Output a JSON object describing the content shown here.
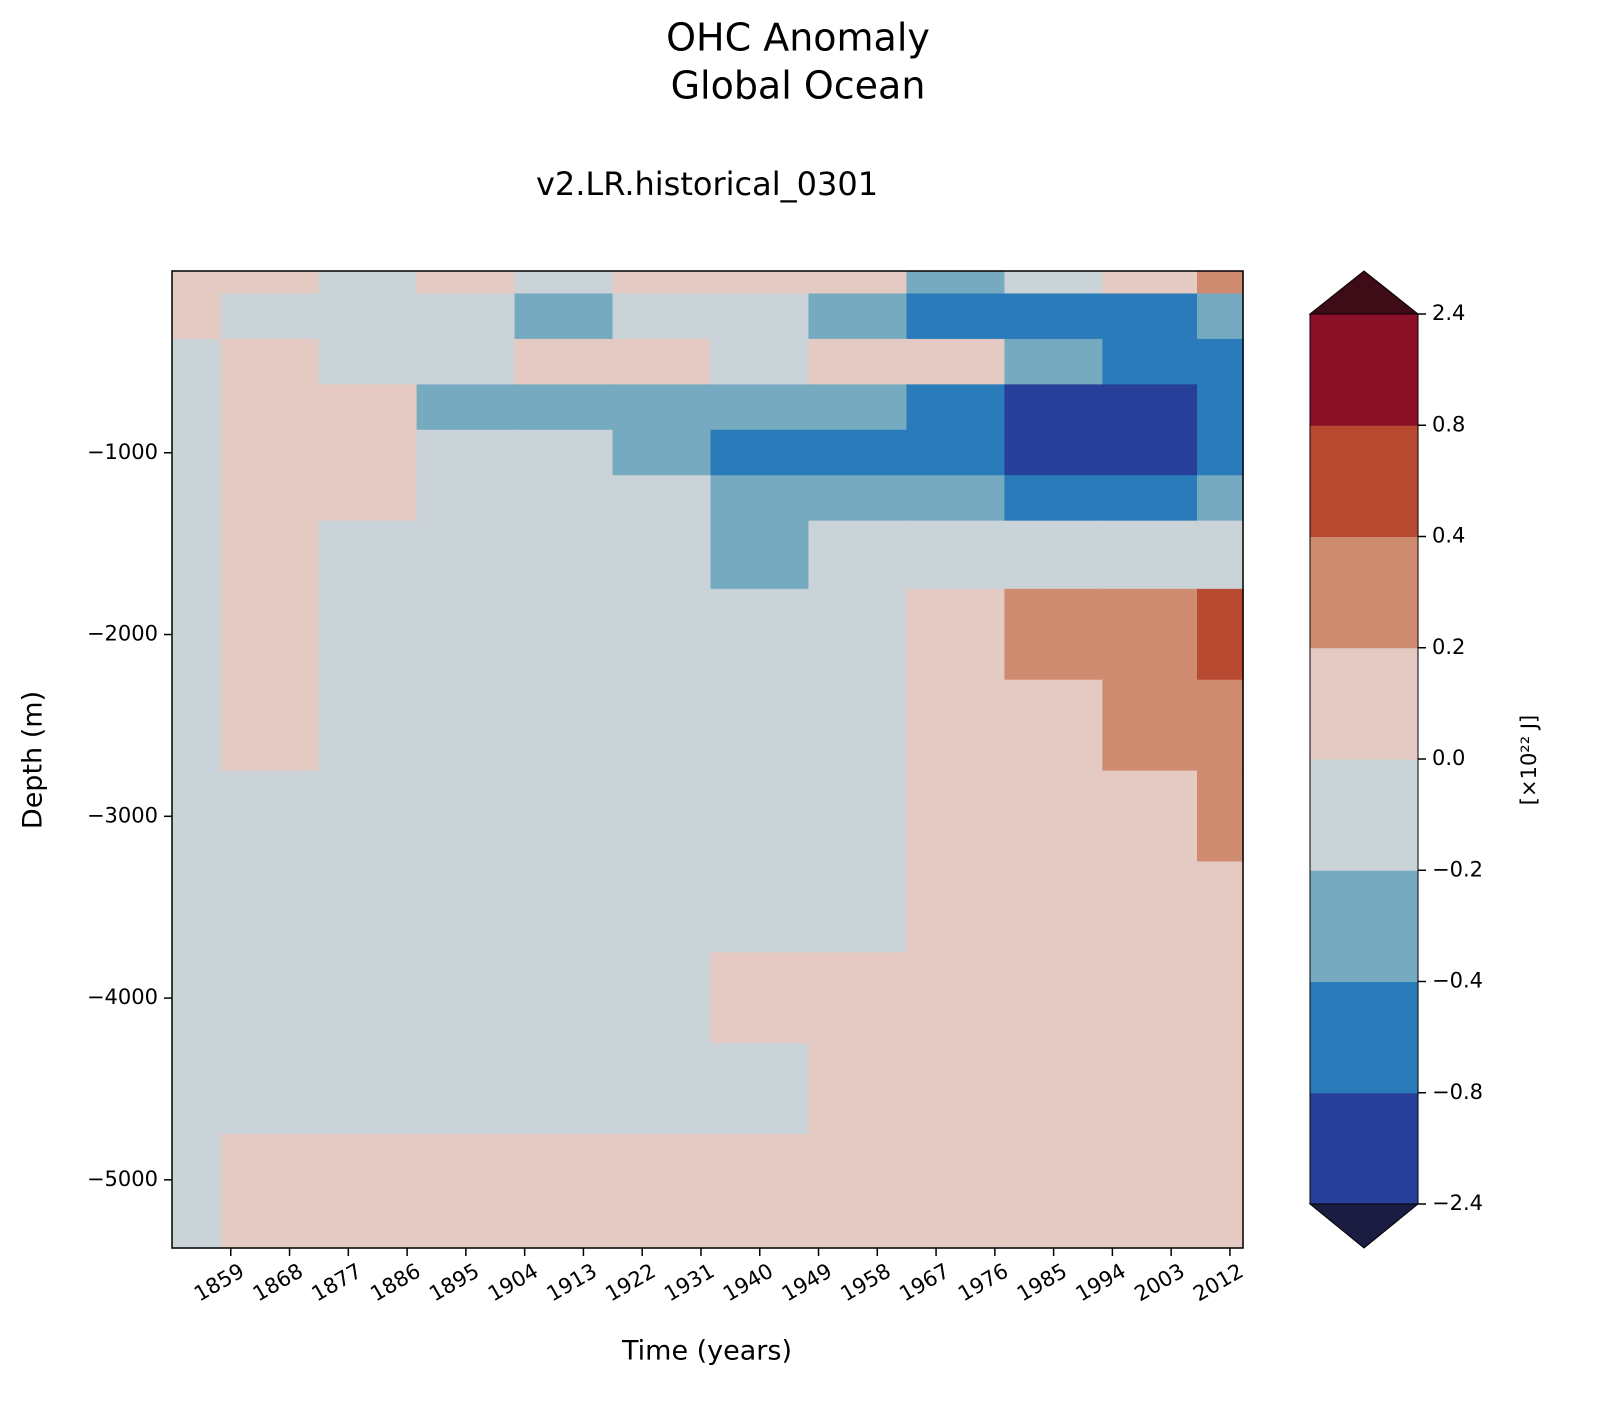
{
  "chart_data": {
    "type": "contourf",
    "title": [
      "OHC Anomaly",
      "Global Ocean"
    ],
    "subtitle": "v2.LR.historical_0301",
    "xlabel": "Time (years)",
    "ylabel": "Depth (m)",
    "colorbar_label": "[×10²² J]",
    "xlim": [
      1850,
      2014
    ],
    "ylim": [
      -5375,
      0
    ],
    "xticks": [
      1859,
      1868,
      1877,
      1886,
      1895,
      1904,
      1913,
      1922,
      1931,
      1940,
      1949,
      1958,
      1967,
      1976,
      1985,
      1994,
      2003,
      2012
    ],
    "yticks": [
      {
        "value": -1000,
        "label": "−1000"
      },
      {
        "value": -2000,
        "label": "−2000"
      },
      {
        "value": -3000,
        "label": "−3000"
      },
      {
        "value": -4000,
        "label": "−4000"
      },
      {
        "value": -5000,
        "label": "−5000"
      }
    ],
    "levels": [
      {
        "value": -2.4,
        "label": "−2.4"
      },
      {
        "value": -0.8,
        "label": "−0.8"
      },
      {
        "value": -0.4,
        "label": "−0.4"
      },
      {
        "value": -0.2,
        "label": "−0.2"
      },
      {
        "value": 0,
        "label": "0.0"
      },
      0.2,
      0.4,
      0.8,
      2.4
    ],
    "colors": [
      "#283f99",
      "#2a7bba",
      "#76aac0",
      "#c9d3d8",
      "#e5cac3",
      "#cf8b70",
      "#b74a31",
      "#8a1028"
    ],
    "under_color": "#1b1c42",
    "over_color": "#3d0c16",
    "x": [
      1850,
      1865,
      1880,
      1895,
      1910,
      1925,
      1940,
      1955,
      1970,
      1985,
      2000,
      2014
    ],
    "y": [
      0,
      -250,
      -500,
      -750,
      -1000,
      -1250,
      -1500,
      -2000,
      -2500,
      -3000,
      -3500,
      -4000,
      -4500,
      -5000,
      -5375
    ],
    "z": [
      [
        0.05,
        0.05,
        -0.1,
        0.05,
        -0.1,
        0.05,
        0.05,
        0.05,
        -0.3,
        -0.1,
        0.1,
        0.2
      ],
      [
        0.05,
        -0.1,
        -0.1,
        -0.1,
        -0.3,
        -0.1,
        -0.1,
        -0.3,
        -0.5,
        -0.5,
        -0.6,
        -0.3
      ],
      [
        -0.1,
        0.05,
        -0.1,
        -0.1,
        0.05,
        0.05,
        -0.1,
        0.1,
        0.05,
        -0.3,
        -0.5,
        -0.6
      ],
      [
        -0.1,
        0.05,
        0.05,
        -0.3,
        -0.3,
        -0.3,
        -0.3,
        -0.3,
        -0.6,
        -0.9,
        -0.9,
        -0.6
      ],
      [
        -0.1,
        0.05,
        0.05,
        -0.1,
        -0.1,
        -0.3,
        -0.6,
        -0.6,
        -0.7,
        -0.9,
        -1.0,
        -0.7
      ],
      [
        -0.1,
        0.05,
        0.05,
        -0.1,
        -0.1,
        -0.1,
        -0.3,
        -0.3,
        -0.3,
        -0.5,
        -0.5,
        -0.3
      ],
      [
        -0.1,
        0.05,
        -0.1,
        -0.1,
        -0.1,
        -0.1,
        -0.3,
        -0.1,
        -0.1,
        -0.1,
        -0.1,
        -0.1
      ],
      [
        -0.1,
        0.05,
        -0.1,
        -0.1,
        -0.1,
        -0.1,
        -0.1,
        -0.1,
        0.05,
        0.2,
        0.3,
        0.5
      ],
      [
        -0.1,
        0.05,
        -0.1,
        -0.1,
        -0.1,
        -0.1,
        -0.1,
        -0.1,
        0.05,
        0.1,
        0.3,
        0.3
      ],
      [
        -0.1,
        -0.1,
        -0.1,
        -0.1,
        -0.1,
        -0.1,
        -0.1,
        -0.1,
        0.05,
        0.05,
        0.1,
        0.3
      ],
      [
        -0.1,
        -0.1,
        -0.1,
        -0.1,
        -0.1,
        -0.1,
        -0.1,
        -0.1,
        0.05,
        0.05,
        0.05,
        0.1
      ],
      [
        -0.1,
        -0.1,
        -0.1,
        -0.1,
        -0.1,
        -0.1,
        0.05,
        0.05,
        0.05,
        0.05,
        0.05,
        0.05
      ],
      [
        -0.1,
        -0.1,
        -0.1,
        -0.1,
        -0.1,
        -0.1,
        -0.1,
        0.05,
        0.05,
        0.05,
        0.05,
        0.05
      ],
      [
        -0.1,
        0.05,
        0.05,
        0.05,
        0.05,
        0.05,
        0.05,
        0.05,
        0.05,
        0.05,
        0.05,
        0.05
      ],
      [
        -0.1,
        0.05,
        0.05,
        0.05,
        0.05,
        0.05,
        0.05,
        0.05,
        0.05,
        0.05,
        0.05,
        0.05
      ]
    ]
  }
}
